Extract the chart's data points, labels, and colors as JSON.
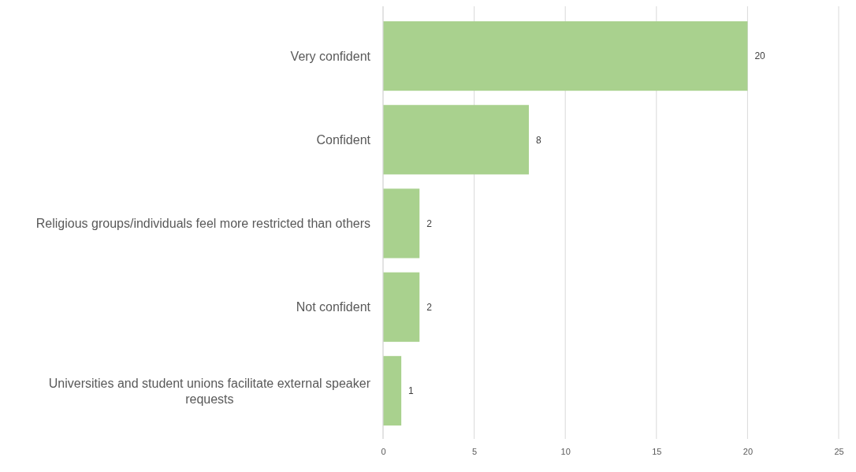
{
  "chart_data": {
    "type": "bar",
    "orientation": "horizontal",
    "categories": [
      "Very confident",
      "Confident",
      "Religious groups/individuals feel more restricted than others",
      "Not confident",
      "Universities and student unions facilitate external speaker requests"
    ],
    "values": [
      20,
      8,
      2,
      2,
      1
    ],
    "color": "#a9d18e",
    "xlim": [
      0,
      25
    ],
    "xticks": [
      0,
      5,
      10,
      15,
      20,
      25
    ],
    "grid": "x",
    "data_labels": true
  }
}
